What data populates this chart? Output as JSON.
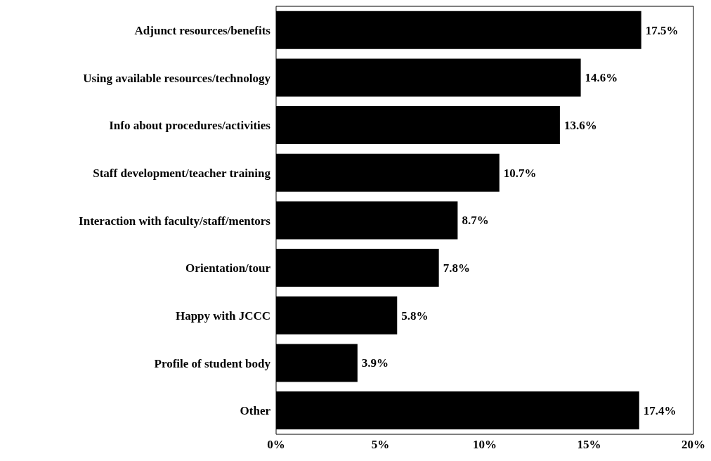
{
  "chart_data": {
    "type": "bar",
    "orientation": "horizontal",
    "categories": [
      "Adjunct resources/benefits",
      "Using available resources/technology",
      "Info about procedures/activities",
      "Staff development/teacher training",
      "Interaction with faculty/staff/mentors",
      "Orientation/tour",
      "Happy with JCCC",
      "Profile of student body",
      "Other"
    ],
    "values": [
      17.5,
      14.6,
      13.6,
      10.7,
      8.7,
      7.8,
      5.8,
      3.9,
      17.4
    ],
    "value_labels": [
      "17.5%",
      "14.6%",
      "13.6%",
      "10.7%",
      "8.7%",
      "7.8%",
      "5.8%",
      "3.9%",
      "17.4%"
    ],
    "color": "#000000",
    "xlim": [
      0,
      20
    ],
    "xticks": [
      {
        "value": 0,
        "label": "0%"
      },
      {
        "value": 5,
        "label": "5%"
      },
      {
        "value": 10,
        "label": "10%"
      },
      {
        "value": 15,
        "label": "15%"
      },
      {
        "value": 20,
        "label": "20%"
      }
    ],
    "grid": false,
    "legend": false
  }
}
